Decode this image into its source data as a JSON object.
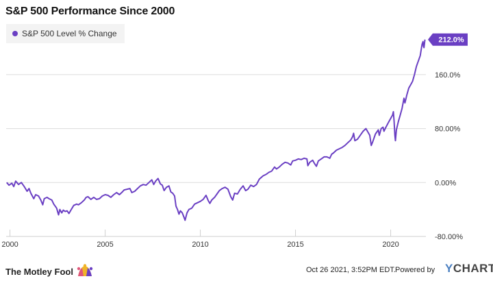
{
  "chart_data": {
    "type": "line",
    "title": "S&P 500 Performance Since 2000",
    "series": [
      {
        "name": "S&P 500 Level % Change",
        "color": "#6a3fc3",
        "points": [
          [
            1999.83,
            0
          ],
          [
            1999.95,
            -4
          ],
          [
            2000.1,
            -1
          ],
          [
            2000.2,
            -6
          ],
          [
            2000.3,
            2
          ],
          [
            2000.45,
            -3
          ],
          [
            2000.6,
            0
          ],
          [
            2000.75,
            -6
          ],
          [
            2000.9,
            -13
          ],
          [
            2001.0,
            -9
          ],
          [
            2001.1,
            -16
          ],
          [
            2001.25,
            -24
          ],
          [
            2001.35,
            -18
          ],
          [
            2001.5,
            -20
          ],
          [
            2001.62,
            -26
          ],
          [
            2001.72,
            -33
          ],
          [
            2001.8,
            -24
          ],
          [
            2001.95,
            -22
          ],
          [
            2002.05,
            -24
          ],
          [
            2002.2,
            -26
          ],
          [
            2002.3,
            -32
          ],
          [
            2002.45,
            -38
          ],
          [
            2002.55,
            -48
          ],
          [
            2002.62,
            -40
          ],
          [
            2002.72,
            -45
          ],
          [
            2002.8,
            -41
          ],
          [
            2002.9,
            -43
          ],
          [
            2003.0,
            -42
          ],
          [
            2003.1,
            -46
          ],
          [
            2003.2,
            -41
          ],
          [
            2003.35,
            -34
          ],
          [
            2003.5,
            -32
          ],
          [
            2003.6,
            -33
          ],
          [
            2003.75,
            -30
          ],
          [
            2003.9,
            -26
          ],
          [
            2004.0,
            -22
          ],
          [
            2004.1,
            -21
          ],
          [
            2004.25,
            -25
          ],
          [
            2004.4,
            -22
          ],
          [
            2004.55,
            -25
          ],
          [
            2004.7,
            -24
          ],
          [
            2004.85,
            -20
          ],
          [
            2005.0,
            -18
          ],
          [
            2005.15,
            -19
          ],
          [
            2005.3,
            -22
          ],
          [
            2005.45,
            -18
          ],
          [
            2005.6,
            -15
          ],
          [
            2005.75,
            -18
          ],
          [
            2005.9,
            -14
          ],
          [
            2006.0,
            -11
          ],
          [
            2006.15,
            -10
          ],
          [
            2006.3,
            -9
          ],
          [
            2006.4,
            -15
          ],
          [
            2006.55,
            -13
          ],
          [
            2006.7,
            -9
          ],
          [
            2006.85,
            -5
          ],
          [
            2007.0,
            -3
          ],
          [
            2007.15,
            -4
          ],
          [
            2007.3,
            0
          ],
          [
            2007.45,
            4
          ],
          [
            2007.55,
            -3
          ],
          [
            2007.65,
            2
          ],
          [
            2007.78,
            6
          ],
          [
            2007.9,
            -2
          ],
          [
            2008.0,
            -4
          ],
          [
            2008.1,
            -12
          ],
          [
            2008.22,
            -7
          ],
          [
            2008.35,
            -5
          ],
          [
            2008.45,
            -14
          ],
          [
            2008.55,
            -16
          ],
          [
            2008.65,
            -20
          ],
          [
            2008.72,
            -35
          ],
          [
            2008.8,
            -40
          ],
          [
            2008.88,
            -47
          ],
          [
            2008.95,
            -42
          ],
          [
            2009.05,
            -45
          ],
          [
            2009.15,
            -52
          ],
          [
            2009.2,
            -56
          ],
          [
            2009.3,
            -45
          ],
          [
            2009.4,
            -40
          ],
          [
            2009.55,
            -38
          ],
          [
            2009.7,
            -32
          ],
          [
            2009.85,
            -30
          ],
          [
            2010.0,
            -28
          ],
          [
            2010.15,
            -25
          ],
          [
            2010.3,
            -19
          ],
          [
            2010.42,
            -27
          ],
          [
            2010.5,
            -31
          ],
          [
            2010.6,
            -26
          ],
          [
            2010.75,
            -22
          ],
          [
            2010.9,
            -16
          ],
          [
            2011.0,
            -12
          ],
          [
            2011.15,
            -9
          ],
          [
            2011.3,
            -7
          ],
          [
            2011.45,
            -10
          ],
          [
            2011.6,
            -21
          ],
          [
            2011.7,
            -26
          ],
          [
            2011.8,
            -16
          ],
          [
            2011.95,
            -17
          ],
          [
            2012.1,
            -10
          ],
          [
            2012.25,
            -5
          ],
          [
            2012.38,
            -12
          ],
          [
            2012.5,
            -10
          ],
          [
            2012.65,
            -4
          ],
          [
            2012.8,
            -6
          ],
          [
            2012.95,
            -3
          ],
          [
            2013.1,
            5
          ],
          [
            2013.3,
            10
          ],
          [
            2013.45,
            12
          ],
          [
            2013.6,
            15
          ],
          [
            2013.75,
            17
          ],
          [
            2013.9,
            23
          ],
          [
            2014.0,
            20
          ],
          [
            2014.15,
            23
          ],
          [
            2014.3,
            27
          ],
          [
            2014.45,
            30
          ],
          [
            2014.6,
            29
          ],
          [
            2014.75,
            26
          ],
          [
            2014.85,
            32
          ],
          [
            2015.0,
            33
          ],
          [
            2015.15,
            35
          ],
          [
            2015.3,
            34
          ],
          [
            2015.45,
            36
          ],
          [
            2015.6,
            35
          ],
          [
            2015.65,
            25
          ],
          [
            2015.75,
            30
          ],
          [
            2015.9,
            33
          ],
          [
            2016.0,
            28
          ],
          [
            2016.1,
            24
          ],
          [
            2016.2,
            32
          ],
          [
            2016.35,
            35
          ],
          [
            2016.5,
            38
          ],
          [
            2016.65,
            38
          ],
          [
            2016.8,
            36
          ],
          [
            2016.9,
            42
          ],
          [
            2017.0,
            44
          ],
          [
            2017.15,
            48
          ],
          [
            2017.3,
            50
          ],
          [
            2017.45,
            52
          ],
          [
            2017.6,
            55
          ],
          [
            2017.75,
            59
          ],
          [
            2017.9,
            63
          ],
          [
            2018.0,
            68
          ],
          [
            2018.05,
            73
          ],
          [
            2018.12,
            62
          ],
          [
            2018.25,
            64
          ],
          [
            2018.4,
            70
          ],
          [
            2018.55,
            76
          ],
          [
            2018.7,
            80
          ],
          [
            2018.8,
            75
          ],
          [
            2018.9,
            70
          ],
          [
            2018.98,
            55
          ],
          [
            2019.05,
            60
          ],
          [
            2019.2,
            72
          ],
          [
            2019.35,
            78
          ],
          [
            2019.4,
            70
          ],
          [
            2019.5,
            80
          ],
          [
            2019.6,
            82
          ],
          [
            2019.65,
            76
          ],
          [
            2019.75,
            82
          ],
          [
            2019.9,
            90
          ],
          [
            2020.0,
            95
          ],
          [
            2020.1,
            100
          ],
          [
            2020.14,
            105
          ],
          [
            2020.18,
            90
          ],
          [
            2020.22,
            70
          ],
          [
            2020.25,
            62
          ],
          [
            2020.3,
            78
          ],
          [
            2020.4,
            90
          ],
          [
            2020.5,
            100
          ],
          [
            2020.6,
            110
          ],
          [
            2020.7,
            125
          ],
          [
            2020.75,
            118
          ],
          [
            2020.85,
            130
          ],
          [
            2020.95,
            140
          ],
          [
            2021.05,
            145
          ],
          [
            2021.15,
            150
          ],
          [
            2021.25,
            160
          ],
          [
            2021.35,
            172
          ],
          [
            2021.45,
            180
          ],
          [
            2021.55,
            188
          ],
          [
            2021.65,
            205
          ],
          [
            2021.7,
            209
          ],
          [
            2021.72,
            202
          ],
          [
            2021.75,
            200
          ],
          [
            2021.8,
            212
          ]
        ]
      }
    ],
    "xlim": [
      1999.8,
      2021.85
    ],
    "ylim": [
      -80,
      230
    ],
    "x_ticks": [
      2000,
      2005,
      2010,
      2015,
      2020
    ],
    "x_tick_labels": [
      "2000",
      "2005",
      "2010",
      "2015",
      "2020"
    ],
    "y_ticks": [
      -80,
      0,
      80,
      160
    ],
    "y_tick_labels": [
      "-80.00%",
      "0.00%",
      "80.00%",
      "160.0%"
    ],
    "last_value_label": "212.0%",
    "grid": "horizontal",
    "legend_position": "top-left"
  },
  "footer": {
    "brand": "The Motley Fool",
    "timestamp": "Oct 26 2021, 3:52PM EDT.",
    "powered_by": "Powered by",
    "ycharts_y": "Y",
    "ycharts_rest": "CHARTS"
  }
}
